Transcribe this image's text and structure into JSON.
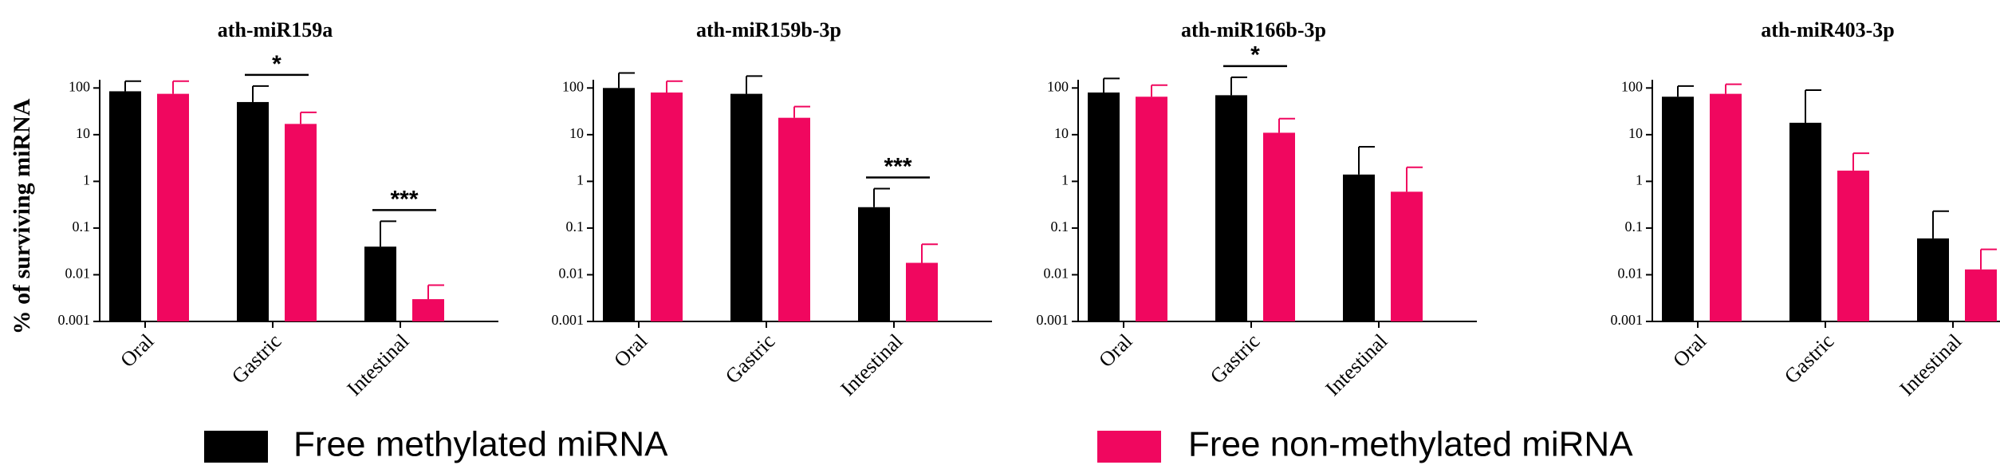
{
  "chart_data": [
    {
      "type": "bar",
      "title": "ath-miR159a",
      "ylabel": "% of surviving miRNA",
      "categories": [
        "Oral",
        "Gastric",
        "Intestinal"
      ],
      "series": [
        {
          "name": "Free methylated miRNA",
          "color": "#000000",
          "values": [
            85,
            50,
            0.04
          ],
          "errors": [
            55,
            60,
            0.1
          ]
        },
        {
          "name": "Free non-methylated miRNA",
          "color": "#f0075f",
          "values": [
            75,
            17,
            0.003
          ],
          "errors": [
            65,
            13,
            0.003
          ]
        }
      ],
      "yscale": "log",
      "ylim": [
        0.001,
        150
      ],
      "yticks": [
        0.001,
        0.01,
        0.1,
        1,
        10,
        100
      ],
      "annotations": [
        {
          "text": "*",
          "category": "Gastric"
        },
        {
          "text": "***",
          "category": "Intestinal"
        }
      ]
    },
    {
      "type": "bar",
      "title": "ath-miR159b-3p",
      "categories": [
        "Oral",
        "Gastric",
        "Intestinal"
      ],
      "series": [
        {
          "name": "Free methylated miRNA",
          "color": "#000000",
          "values": [
            100,
            75,
            0.28
          ],
          "errors": [
            110,
            105,
            0.42
          ]
        },
        {
          "name": "Free non-methylated miRNA",
          "color": "#f0075f",
          "values": [
            80,
            23,
            0.018
          ],
          "errors": [
            60,
            17,
            0.027
          ]
        }
      ],
      "yscale": "log",
      "ylim": [
        0.001,
        150
      ],
      "yticks": [
        0.001,
        0.01,
        0.1,
        1,
        10,
        100
      ],
      "annotations": [
        {
          "text": "***",
          "category": "Intestinal"
        }
      ]
    },
    {
      "type": "bar",
      "title": "ath-miR166b-3p",
      "categories": [
        "Oral",
        "Gastric",
        "Intestinal"
      ],
      "series": [
        {
          "name": "Free methylated miRNA",
          "color": "#000000",
          "values": [
            80,
            70,
            1.4
          ],
          "errors": [
            80,
            100,
            4.1
          ]
        },
        {
          "name": "Free non-methylated miRNA",
          "color": "#f0075f",
          "values": [
            65,
            11,
            0.6
          ],
          "errors": [
            50,
            11,
            1.4
          ]
        }
      ],
      "yscale": "log",
      "ylim": [
        0.001,
        150
      ],
      "yticks": [
        0.001,
        0.01,
        0.1,
        1,
        10,
        100
      ],
      "annotations": [
        {
          "text": "*",
          "category": "Gastric"
        }
      ]
    },
    {
      "type": "bar",
      "title": "ath-miR403-3p",
      "categories": [
        "Oral",
        "Gastric",
        "Intestinal"
      ],
      "series": [
        {
          "name": "Free methylated miRNA",
          "color": "#000000",
          "values": [
            65,
            18,
            0.06
          ],
          "errors": [
            45,
            72,
            0.17
          ]
        },
        {
          "name": "Free non-methylated miRNA",
          "color": "#f0075f",
          "values": [
            75,
            1.7,
            0.013
          ],
          "errors": [
            45,
            2.3,
            0.022
          ]
        }
      ],
      "yscale": "log",
      "ylim": [
        0.001,
        150
      ],
      "yticks": [
        0.001,
        0.01,
        0.1,
        1,
        10,
        100
      ],
      "annotations": []
    }
  ]
}
